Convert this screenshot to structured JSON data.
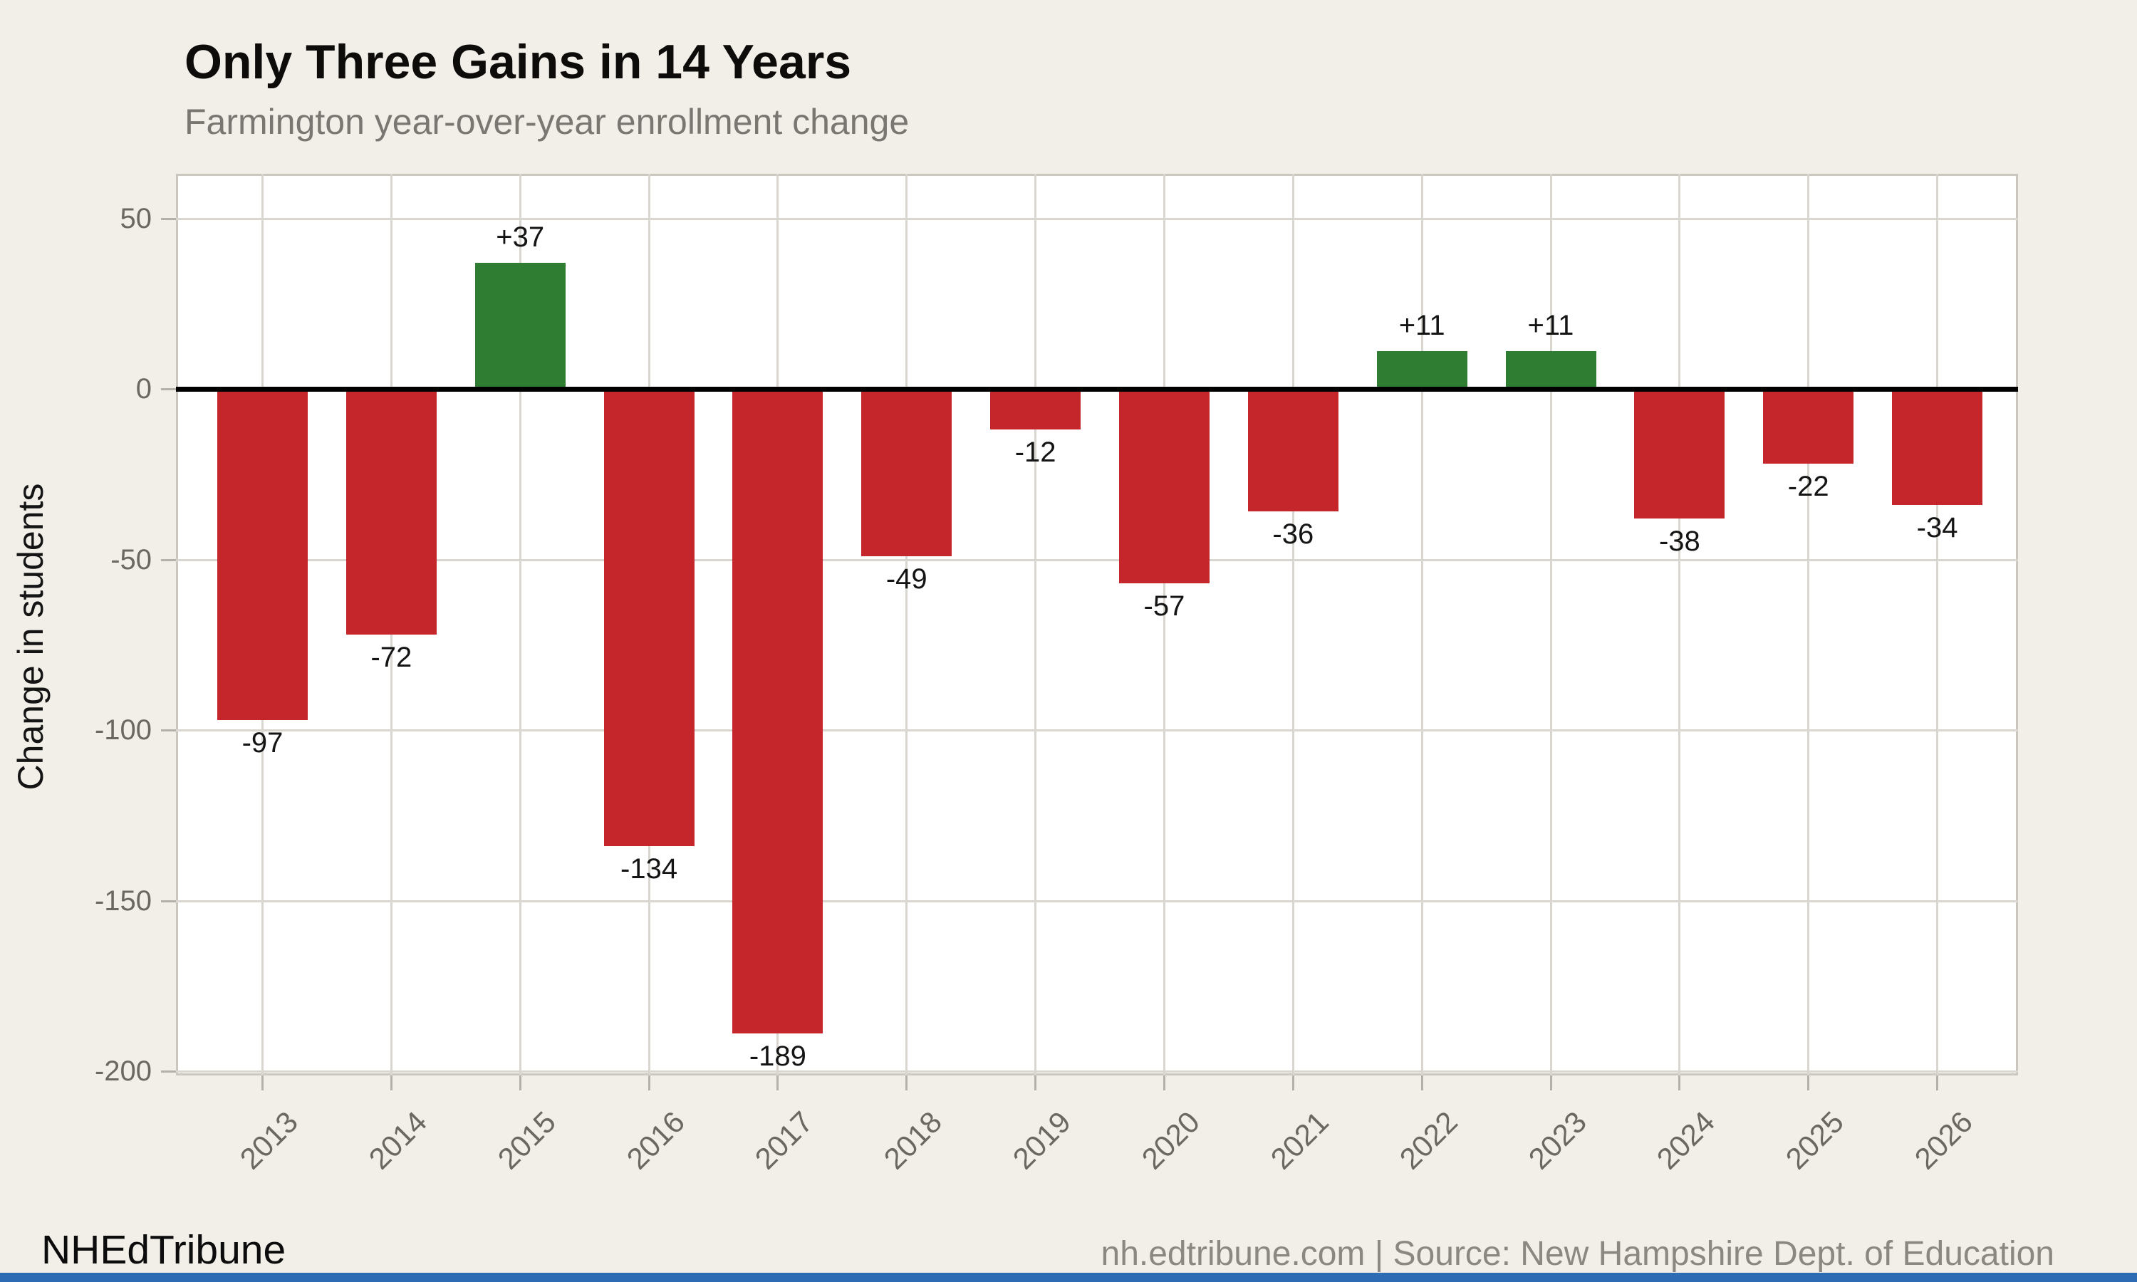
{
  "title": "Only Three Gains in 14 Years",
  "subtitle": "Farmington year-over-year enrollment change",
  "y_axis_title": "Change in students",
  "footer": {
    "brand": "NHEdTribune",
    "source": "nh.edtribune.com | Source: New Hampshire Dept. of Education"
  },
  "colors": {
    "background": "#f2efe9",
    "panel": "#ffffff",
    "panel_border": "#cbc7bf",
    "gridline": "#d9d6d0",
    "tick": "#b5b1a8",
    "axis_text": "#6b6862",
    "zero_line": "#000000",
    "positive_bar": "#2e7d33",
    "negative_bar": "#c4262b",
    "value_label": "#141414",
    "subtitle_text": "#7a7772",
    "source_text": "#8b8781",
    "accent_bar": "#2d6cb5"
  },
  "chart_data": {
    "type": "bar",
    "title": "Only Three Gains in 14 Years",
    "subtitle": "Farmington year-over-year enrollment change",
    "xlabel": "",
    "ylabel": "Change in students",
    "categories": [
      "2013",
      "2014",
      "2015",
      "2016",
      "2017",
      "2018",
      "2019",
      "2020",
      "2021",
      "2022",
      "2023",
      "2024",
      "2025",
      "2026"
    ],
    "values": [
      -97,
      -72,
      37,
      -134,
      -189,
      -49,
      -12,
      -57,
      -36,
      11,
      11,
      -38,
      -22,
      -34
    ],
    "value_labels": [
      "-97",
      "-72",
      "+37",
      "-134",
      "-189",
      "-49",
      "-12",
      "-57",
      "-36",
      "+11",
      "+11",
      "-38",
      "-22",
      "-34"
    ],
    "yticks": [
      50,
      0,
      -50,
      -100,
      -150,
      -200
    ],
    "ylim": [
      -203,
      63
    ],
    "grid": true,
    "legend": "none",
    "bar_color_positive": "#2e7d33",
    "bar_color_negative": "#c4262b",
    "zero_line": true,
    "x_tick_rotation": -45
  }
}
